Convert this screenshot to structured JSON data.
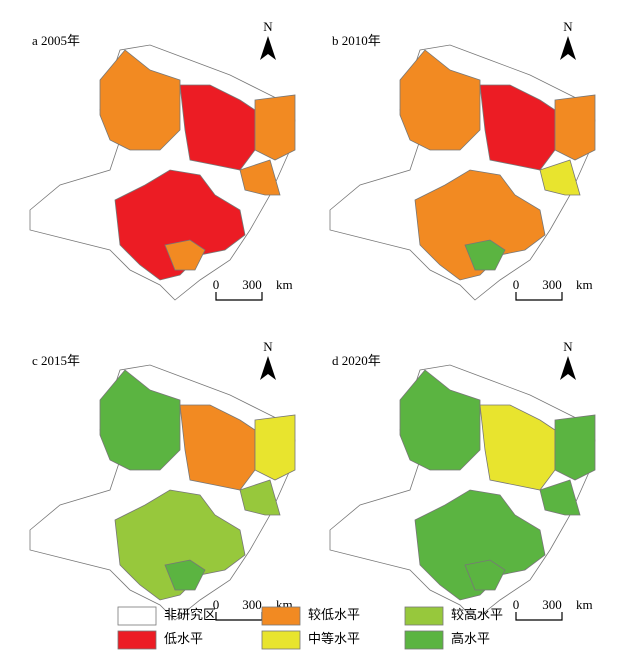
{
  "panels": [
    {
      "label": "a 2005年",
      "north": "N",
      "scale": {
        "zero": "0",
        "max": "300",
        "unit": "km"
      }
    },
    {
      "label": "b 2010年",
      "north": "N",
      "scale": {
        "zero": "0",
        "max": "300",
        "unit": "km"
      }
    },
    {
      "label": "c 2015年",
      "north": "N",
      "scale": {
        "zero": "0",
        "max": "300",
        "unit": "km"
      }
    },
    {
      "label": "d 2020年",
      "north": "N",
      "scale": {
        "zero": "0",
        "max": "300",
        "unit": "km"
      }
    }
  ],
  "legend": [
    {
      "label": "非研究区",
      "color": "#ffffff"
    },
    {
      "label": "较低水平",
      "color": "#f28a22"
    },
    {
      "label": "较高水平",
      "color": "#97c83c"
    },
    {
      "label": "低水平",
      "color": "#ec1c24"
    },
    {
      "label": "中等水平",
      "color": "#e8e42e"
    },
    {
      "label": "高水平",
      "color": "#5bb441"
    }
  ]
}
